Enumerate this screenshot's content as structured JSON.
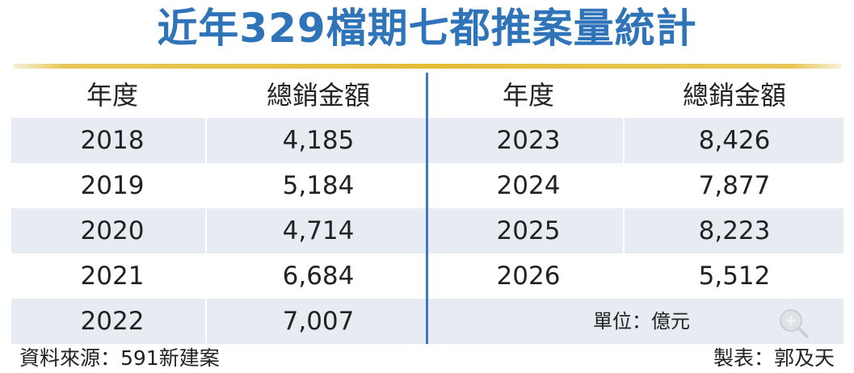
{
  "title": "近年329檔期七都推案量統計",
  "table": {
    "headers": [
      "年度",
      "總銷金額",
      "年度",
      "總銷金額"
    ],
    "rows": [
      {
        "year_left": "2018",
        "amount_left": "4,185",
        "year_right": "2023",
        "amount_right": "8,426"
      },
      {
        "year_left": "2019",
        "amount_left": "5,184",
        "year_right": "2024",
        "amount_right": "7,877"
      },
      {
        "year_left": "2020",
        "amount_left": "4,714",
        "year_right": "2025",
        "amount_right": "8,223"
      },
      {
        "year_left": "2021",
        "amount_left": "6,684",
        "year_right": "2026",
        "amount_right": "5,512"
      },
      {
        "year_left": "2022",
        "amount_left": "7,007",
        "year_right": "",
        "amount_right": ""
      }
    ],
    "unit_note": "單位：億元"
  },
  "footer": {
    "source": "資料來源：591新建案",
    "credit": "製表：郭及天"
  },
  "colors": {
    "title": "#2f74b8",
    "rule": "#e4bd35",
    "row_shade": "#e7ecf3",
    "divider": "#3f78bf"
  },
  "icons": {
    "zoom": "zoom-in-icon"
  },
  "chart_data": {
    "type": "table",
    "title": "近年329檔期七都推案量統計",
    "columns": [
      "年度",
      "總銷金額"
    ],
    "unit": "單位：億元",
    "x": [
      "2018",
      "2019",
      "2020",
      "2021",
      "2022",
      "2023",
      "2024",
      "2025",
      "2026"
    ],
    "values": [
      4185,
      5184,
      4714,
      6684,
      7007,
      8426,
      7877,
      8223,
      5512
    ]
  }
}
